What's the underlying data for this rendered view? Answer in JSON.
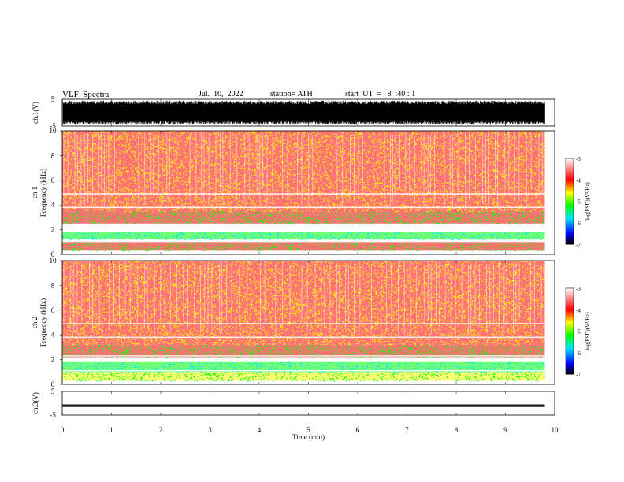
{
  "header": {
    "title": "VLF  Spectra",
    "date": "Jul.  10,  2022",
    "station": "station= ATH",
    "start": "start  UT  =   8  :40 : 1"
  },
  "colors": {
    "waveform": "#000000",
    "colormap": [
      "#000000",
      "#0000ff",
      "#00e5ff",
      "#00ff00",
      "#ffff00",
      "#ff0000",
      "#ffffff"
    ]
  },
  "chart_data": [
    {
      "type": "line",
      "name": "ch1-waveform",
      "ylabel": "ch.1(V)",
      "ylim": [
        -5,
        5
      ],
      "yticks": [
        "5",
        "-5"
      ],
      "xlim": [
        0,
        10
      ],
      "x_end_min": 9.8,
      "signal": "broadband noise, amplitude about ±4 V"
    },
    {
      "type": "heatmap",
      "name": "ch1-spectrogram",
      "ylabel": "Frequency  (kHz)",
      "channel_label": "ch.1",
      "ylim": [
        0,
        10
      ],
      "yticks": [
        "0",
        "2",
        "4",
        "6",
        "8",
        "10"
      ],
      "xlim": [
        0,
        10
      ],
      "colorbar": {
        "label": "log(PSD)(V²/Hz)",
        "range": [
          -7,
          -3
        ],
        "ticks": [
          "-3",
          "-4",
          "-5",
          "-6",
          "-7"
        ]
      },
      "bands": [
        {
          "f_from": 0.3,
          "f_to": 1.0,
          "level": -4.0
        },
        {
          "f_from": 1.2,
          "f_to": 1.8,
          "level": -4.7
        },
        {
          "f_from": 2.5,
          "f_to": 3.5,
          "level": -4.0
        },
        {
          "f_from": 3.5,
          "f_to": 5.0,
          "level": -3.6
        },
        {
          "f_from": 5.0,
          "f_to": 10.0,
          "level": -3.4
        }
      ]
    },
    {
      "type": "heatmap",
      "name": "ch2-spectrogram",
      "ylabel": "Frequency  (kHz)",
      "channel_label": "ch.2",
      "ylim": [
        0,
        10
      ],
      "yticks": [
        "0",
        "2",
        "4",
        "6",
        "8",
        "10"
      ],
      "xlim": [
        0,
        10
      ],
      "colorbar": {
        "label": "log(PSD)(V²/Hz)",
        "range": [
          -7,
          -3
        ],
        "ticks": [
          "-3",
          "-4",
          "-5",
          "-6",
          "-7"
        ]
      },
      "bands": [
        {
          "f_from": 0.3,
          "f_to": 1.0,
          "level": -4.4
        },
        {
          "f_from": 1.0,
          "f_to": 1.8,
          "level": -4.8
        },
        {
          "f_from": 2.2,
          "f_to": 3.2,
          "level": -4.0
        },
        {
          "f_from": 3.2,
          "f_to": 6.0,
          "level": -3.7
        },
        {
          "f_from": 6.0,
          "f_to": 10.0,
          "level": -3.4
        }
      ]
    },
    {
      "type": "line",
      "name": "ch3-waveform",
      "ylabel": "ch.3(V)",
      "ylim": [
        -5,
        5
      ],
      "yticks": [
        "5",
        "-5"
      ],
      "xlim": [
        0,
        10
      ],
      "x_end_min": 9.8,
      "signal": "nearly flat trace at about -1 V"
    }
  ],
  "xaxis": {
    "label": "Time  (min)",
    "ticks": [
      "0",
      "1",
      "2",
      "3",
      "4",
      "5",
      "6",
      "7",
      "8",
      "9",
      "10"
    ]
  }
}
